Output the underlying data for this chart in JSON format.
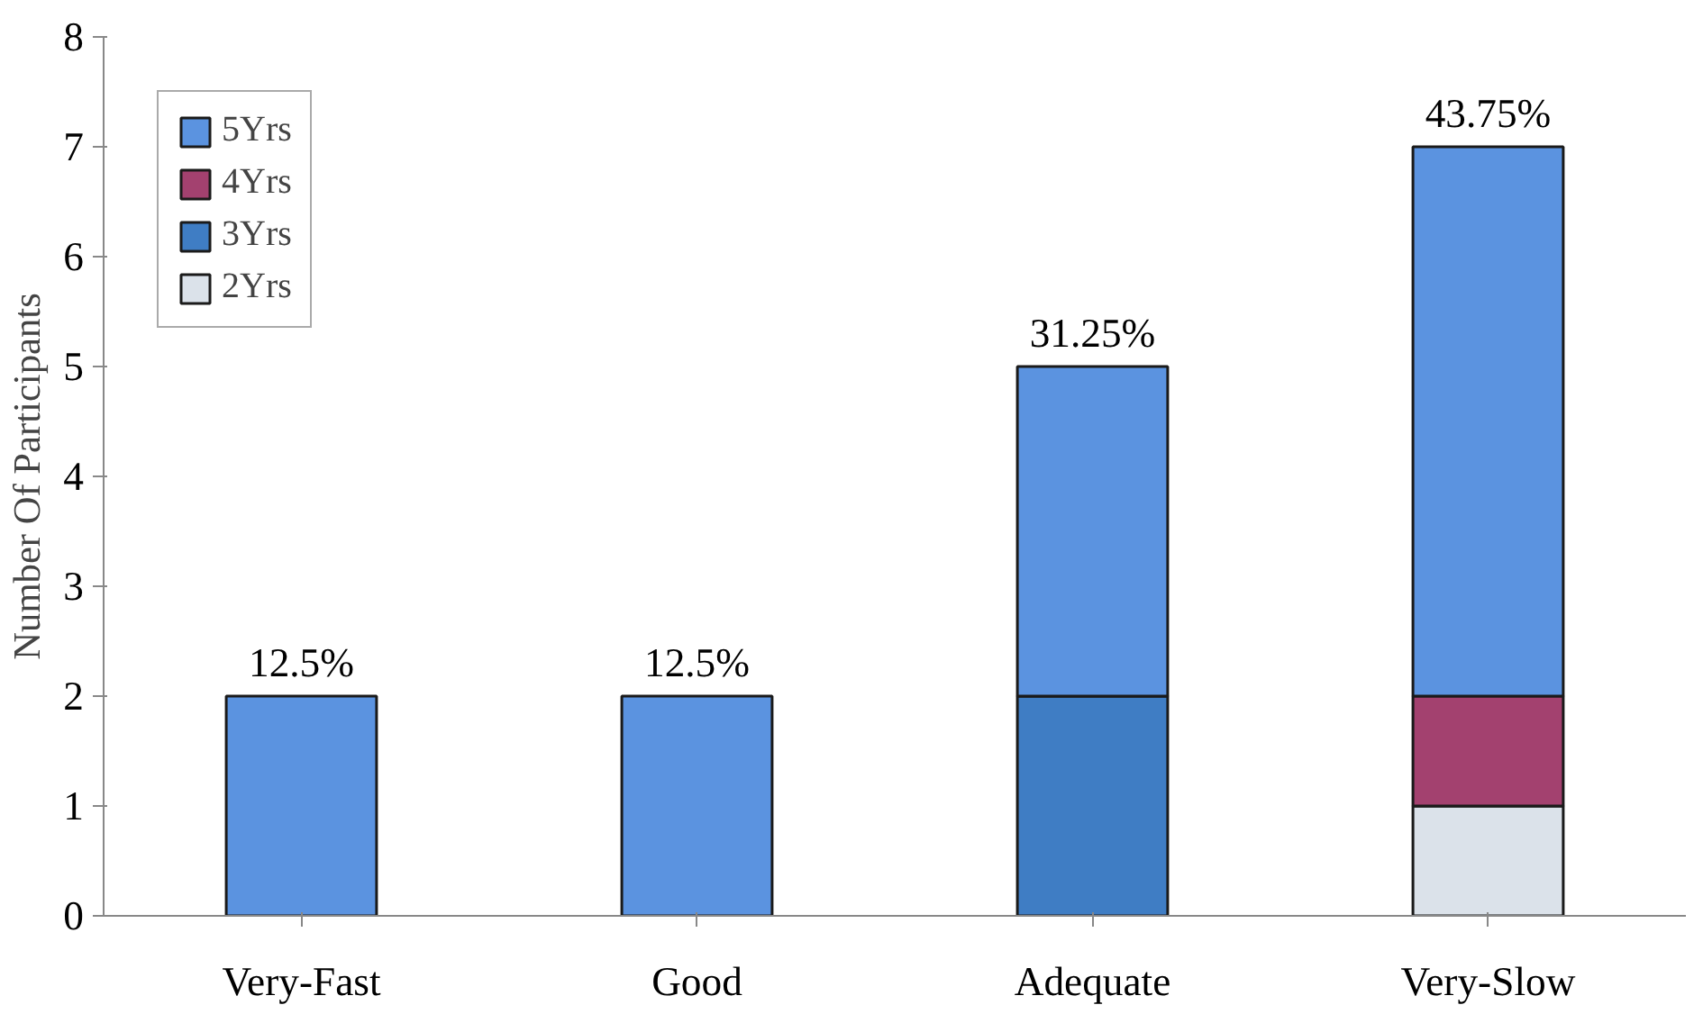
{
  "chart_data": {
    "type": "bar",
    "stacked": true,
    "ylabel": "Number Of Participants",
    "categories": [
      "Very-Fast",
      "Good",
      "Adequate",
      "Very-Slow"
    ],
    "series": [
      {
        "name": "2Yrs",
        "color": "#dbe2ea",
        "values": [
          0,
          0,
          0,
          1
        ]
      },
      {
        "name": "3Yrs",
        "color": "#3f7dc4",
        "values": [
          0,
          0,
          2,
          0
        ]
      },
      {
        "name": "4Yrs",
        "color": "#a3416f",
        "values": [
          0,
          0,
          0,
          1
        ]
      },
      {
        "name": "5Yrs",
        "color": "#5b93e0",
        "values": [
          2,
          2,
          3,
          5
        ]
      }
    ],
    "annotations": [
      {
        "text": "12.5%",
        "x": "Very-Fast",
        "y": 2
      },
      {
        "text": "12.5%",
        "x": "Good",
        "y": 2
      },
      {
        "text": "31.25%",
        "x": "Adequate",
        "y": 5
      },
      {
        "text": "43.75%",
        "x": "Very-Slow",
        "y": 7
      }
    ],
    "ylim": [
      0,
      8
    ],
    "yticks": [
      0,
      1,
      2,
      3,
      4,
      5,
      6,
      7,
      8
    ],
    "grid": false,
    "legend": "top left"
  }
}
